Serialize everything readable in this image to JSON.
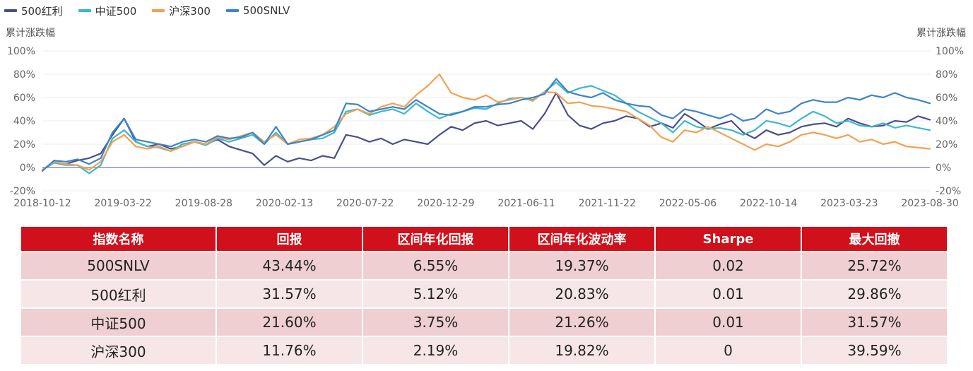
{
  "legend": [
    {
      "label": "500红利",
      "color": "#4a4f8c"
    },
    {
      "label": "中证500",
      "color": "#3fb8c9"
    },
    {
      "label": "沪深300",
      "color": "#f2a154"
    },
    {
      "label": "500SNLV",
      "color": "#3f83c9"
    }
  ],
  "axis": {
    "left_title": "累计涨跌幅",
    "right_title": "累计涨跌幅"
  },
  "chart_data": {
    "type": "line",
    "x_ticks": [
      "2018-10-12",
      "2019-03-22",
      "2019-08-28",
      "2020-02-13",
      "2020-07-22",
      "2020-12-29",
      "2021-06-11",
      "2021-11-22",
      "2022-05-06",
      "2022-10-14",
      "2023-03-23",
      "2023-08-30"
    ],
    "y_ticks": [
      "100%",
      "80%",
      "60%",
      "40%",
      "20%",
      "0%",
      "-20%"
    ],
    "ylim": [
      -20,
      100
    ],
    "y_unit": "%",
    "series": [
      {
        "name": "500红利",
        "color": "#4a4f8c",
        "values": [
          [
            0,
            -2
          ],
          [
            1,
            5
          ],
          [
            2,
            3
          ],
          [
            3,
            6
          ],
          [
            4,
            8
          ],
          [
            5,
            12
          ],
          [
            6,
            28
          ],
          [
            7,
            42
          ],
          [
            8,
            22
          ],
          [
            9,
            18
          ],
          [
            10,
            20
          ],
          [
            11,
            16
          ],
          [
            12,
            18
          ],
          [
            13,
            22
          ],
          [
            14,
            20
          ],
          [
            15,
            24
          ],
          [
            16,
            18
          ],
          [
            17,
            15
          ],
          [
            18,
            12
          ],
          [
            19,
            2
          ],
          [
            20,
            10
          ],
          [
            21,
            5
          ],
          [
            22,
            8
          ],
          [
            23,
            6
          ],
          [
            24,
            10
          ],
          [
            25,
            8
          ],
          [
            26,
            28
          ],
          [
            27,
            26
          ],
          [
            28,
            22
          ],
          [
            29,
            25
          ],
          [
            30,
            20
          ],
          [
            31,
            24
          ],
          [
            32,
            22
          ],
          [
            33,
            20
          ],
          [
            34,
            28
          ],
          [
            35,
            35
          ],
          [
            36,
            32
          ],
          [
            37,
            38
          ],
          [
            38,
            40
          ],
          [
            39,
            36
          ],
          [
            40,
            38
          ],
          [
            41,
            40
          ],
          [
            42,
            33
          ],
          [
            43,
            46
          ],
          [
            44,
            64
          ],
          [
            45,
            45
          ],
          [
            46,
            36
          ],
          [
            47,
            33
          ],
          [
            48,
            38
          ],
          [
            49,
            40
          ],
          [
            50,
            44
          ],
          [
            51,
            42
          ],
          [
            52,
            35
          ],
          [
            53,
            38
          ],
          [
            54,
            34
          ],
          [
            55,
            46
          ],
          [
            56,
            40
          ],
          [
            57,
            33
          ],
          [
            58,
            37
          ],
          [
            59,
            40
          ],
          [
            60,
            30
          ],
          [
            61,
            25
          ],
          [
            62,
            32
          ],
          [
            63,
            28
          ],
          [
            64,
            30
          ],
          [
            65,
            35
          ],
          [
            66,
            37
          ],
          [
            67,
            38
          ],
          [
            68,
            35
          ],
          [
            69,
            42
          ],
          [
            70,
            38
          ],
          [
            71,
            35
          ],
          [
            72,
            36
          ],
          [
            73,
            40
          ],
          [
            74,
            39
          ],
          [
            75,
            44
          ],
          [
            76,
            41
          ]
        ]
      },
      {
        "name": "中证500",
        "color": "#3fb8c9",
        "values": [
          [
            0,
            -2
          ],
          [
            1,
            4
          ],
          [
            2,
            2
          ],
          [
            3,
            2
          ],
          [
            4,
            -5
          ],
          [
            5,
            2
          ],
          [
            6,
            25
          ],
          [
            7,
            32
          ],
          [
            8,
            22
          ],
          [
            9,
            18
          ],
          [
            10,
            17
          ],
          [
            11,
            14
          ],
          [
            12,
            20
          ],
          [
            13,
            22
          ],
          [
            14,
            19
          ],
          [
            15,
            25
          ],
          [
            16,
            22
          ],
          [
            17,
            25
          ],
          [
            18,
            28
          ],
          [
            19,
            20
          ],
          [
            20,
            30
          ],
          [
            21,
            20
          ],
          [
            22,
            22
          ],
          [
            23,
            24
          ],
          [
            24,
            25
          ],
          [
            25,
            30
          ],
          [
            26,
            48
          ],
          [
            27,
            50
          ],
          [
            28,
            45
          ],
          [
            29,
            48
          ],
          [
            30,
            50
          ],
          [
            31,
            46
          ],
          [
            32,
            55
          ],
          [
            33,
            48
          ],
          [
            34,
            42
          ],
          [
            35,
            46
          ],
          [
            36,
            48
          ],
          [
            37,
            51
          ],
          [
            38,
            50
          ],
          [
            39,
            55
          ],
          [
            40,
            59
          ],
          [
            41,
            60
          ],
          [
            42,
            58
          ],
          [
            43,
            65
          ],
          [
            44,
            73
          ],
          [
            45,
            64
          ],
          [
            46,
            68
          ],
          [
            47,
            70
          ],
          [
            48,
            66
          ],
          [
            49,
            62
          ],
          [
            50,
            55
          ],
          [
            51,
            48
          ],
          [
            52,
            43
          ],
          [
            53,
            38
          ],
          [
            54,
            30
          ],
          [
            55,
            40
          ],
          [
            56,
            35
          ],
          [
            57,
            33
          ],
          [
            58,
            34
          ],
          [
            59,
            32
          ],
          [
            60,
            28
          ],
          [
            61,
            32
          ],
          [
            62,
            40
          ],
          [
            63,
            38
          ],
          [
            64,
            35
          ],
          [
            65,
            42
          ],
          [
            66,
            48
          ],
          [
            67,
            44
          ],
          [
            68,
            38
          ],
          [
            69,
            40
          ],
          [
            70,
            36
          ],
          [
            71,
            35
          ],
          [
            72,
            38
          ],
          [
            73,
            34
          ],
          [
            74,
            36
          ],
          [
            75,
            34
          ],
          [
            76,
            32
          ]
        ]
      },
      {
        "name": "沪深300",
        "color": "#f2a154",
        "values": [
          [
            0,
            -2
          ],
          [
            1,
            5
          ],
          [
            2,
            3
          ],
          [
            3,
            2
          ],
          [
            4,
            -2
          ],
          [
            5,
            5
          ],
          [
            6,
            22
          ],
          [
            7,
            28
          ],
          [
            8,
            18
          ],
          [
            9,
            16
          ],
          [
            10,
            18
          ],
          [
            11,
            14
          ],
          [
            12,
            18
          ],
          [
            13,
            22
          ],
          [
            14,
            20
          ],
          [
            15,
            26
          ],
          [
            16,
            24
          ],
          [
            17,
            27
          ],
          [
            18,
            30
          ],
          [
            19,
            22
          ],
          [
            20,
            28
          ],
          [
            21,
            20
          ],
          [
            22,
            24
          ],
          [
            23,
            25
          ],
          [
            24,
            28
          ],
          [
            25,
            35
          ],
          [
            26,
            46
          ],
          [
            27,
            50
          ],
          [
            28,
            46
          ],
          [
            29,
            52
          ],
          [
            30,
            55
          ],
          [
            31,
            52
          ],
          [
            32,
            62
          ],
          [
            33,
            70
          ],
          [
            34,
            80
          ],
          [
            35,
            64
          ],
          [
            36,
            60
          ],
          [
            37,
            58
          ],
          [
            38,
            62
          ],
          [
            39,
            56
          ],
          [
            40,
            58
          ],
          [
            41,
            60
          ],
          [
            42,
            57
          ],
          [
            43,
            65
          ],
          [
            44,
            64
          ],
          [
            45,
            55
          ],
          [
            46,
            56
          ],
          [
            47,
            53
          ],
          [
            48,
            52
          ],
          [
            49,
            50
          ],
          [
            50,
            48
          ],
          [
            51,
            42
          ],
          [
            52,
            36
          ],
          [
            53,
            26
          ],
          [
            54,
            22
          ],
          [
            55,
            32
          ],
          [
            56,
            30
          ],
          [
            57,
            35
          ],
          [
            58,
            30
          ],
          [
            59,
            25
          ],
          [
            60,
            20
          ],
          [
            61,
            15
          ],
          [
            62,
            20
          ],
          [
            63,
            18
          ],
          [
            64,
            22
          ],
          [
            65,
            28
          ],
          [
            66,
            30
          ],
          [
            67,
            28
          ],
          [
            68,
            25
          ],
          [
            69,
            28
          ],
          [
            70,
            22
          ],
          [
            71,
            24
          ],
          [
            72,
            20
          ],
          [
            73,
            22
          ],
          [
            74,
            18
          ],
          [
            75,
            17
          ],
          [
            76,
            16
          ]
        ]
      },
      {
        "name": "500SNLV",
        "color": "#3f83c9",
        "values": [
          [
            0,
            -3
          ],
          [
            1,
            6
          ],
          [
            2,
            5
          ],
          [
            3,
            7
          ],
          [
            4,
            3
          ],
          [
            5,
            8
          ],
          [
            6,
            30
          ],
          [
            7,
            42
          ],
          [
            8,
            24
          ],
          [
            9,
            22
          ],
          [
            10,
            20
          ],
          [
            11,
            18
          ],
          [
            12,
            22
          ],
          [
            13,
            24
          ],
          [
            14,
            22
          ],
          [
            15,
            27
          ],
          [
            16,
            25
          ],
          [
            17,
            26
          ],
          [
            18,
            30
          ],
          [
            19,
            20
          ],
          [
            20,
            35
          ],
          [
            21,
            20
          ],
          [
            22,
            22
          ],
          [
            23,
            24
          ],
          [
            24,
            28
          ],
          [
            25,
            32
          ],
          [
            26,
            55
          ],
          [
            27,
            54
          ],
          [
            28,
            48
          ],
          [
            29,
            50
          ],
          [
            30,
            52
          ],
          [
            31,
            50
          ],
          [
            32,
            58
          ],
          [
            33,
            52
          ],
          [
            34,
            46
          ],
          [
            35,
            45
          ],
          [
            36,
            48
          ],
          [
            37,
            52
          ],
          [
            38,
            52
          ],
          [
            39,
            54
          ],
          [
            40,
            55
          ],
          [
            41,
            58
          ],
          [
            42,
            60
          ],
          [
            43,
            63
          ],
          [
            44,
            76
          ],
          [
            45,
            65
          ],
          [
            46,
            62
          ],
          [
            47,
            60
          ],
          [
            48,
            64
          ],
          [
            49,
            58
          ],
          [
            50,
            55
          ],
          [
            51,
            53
          ],
          [
            52,
            52
          ],
          [
            53,
            45
          ],
          [
            54,
            42
          ],
          [
            55,
            50
          ],
          [
            56,
            48
          ],
          [
            57,
            45
          ],
          [
            58,
            42
          ],
          [
            59,
            46
          ],
          [
            60,
            40
          ],
          [
            61,
            42
          ],
          [
            62,
            50
          ],
          [
            63,
            46
          ],
          [
            64,
            48
          ],
          [
            65,
            55
          ],
          [
            66,
            58
          ],
          [
            67,
            56
          ],
          [
            68,
            56
          ],
          [
            69,
            60
          ],
          [
            70,
            58
          ],
          [
            71,
            62
          ],
          [
            72,
            60
          ],
          [
            73,
            64
          ],
          [
            74,
            60
          ],
          [
            75,
            58
          ],
          [
            76,
            55
          ]
        ]
      }
    ]
  },
  "table": {
    "headers": [
      "指数名称",
      "回报",
      "区间年化回报",
      "区间年化波动率",
      "Sharpe",
      "最大回撤"
    ],
    "rows": [
      [
        "500SNLV",
        "43.44%",
        "6.55%",
        "19.37%",
        "0.02",
        "25.72%"
      ],
      [
        "500红利",
        "31.57%",
        "5.12%",
        "20.83%",
        "0.01",
        "29.86%"
      ],
      [
        "中证500",
        "21.60%",
        "3.75%",
        "21.26%",
        "0.01",
        "31.57%"
      ],
      [
        "沪深300",
        "11.76%",
        "2.19%",
        "19.82%",
        "0",
        "39.59%"
      ]
    ]
  }
}
